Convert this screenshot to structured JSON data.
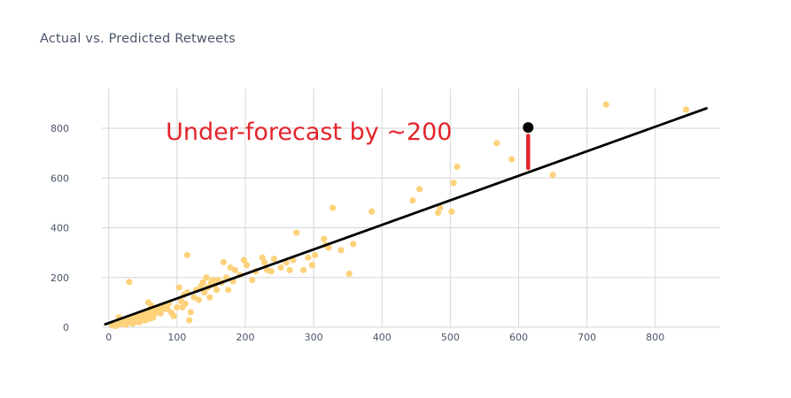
{
  "chart_data": {
    "type": "scatter",
    "title": "Actual vs. Predicted Retweets",
    "xlabel": "",
    "ylabel": "",
    "xlim": [
      -10,
      895
    ],
    "ylim": [
      0,
      960
    ],
    "xticks": [
      0,
      100,
      200,
      300,
      400,
      500,
      600,
      700,
      800
    ],
    "yticks": [
      0,
      200,
      400,
      600,
      800
    ],
    "grid": true,
    "point_color": "#fdd27b",
    "points": [
      [
        5,
        8
      ],
      [
        8,
        12
      ],
      [
        10,
        5
      ],
      [
        12,
        18
      ],
      [
        14,
        10
      ],
      [
        16,
        22
      ],
      [
        18,
        14
      ],
      [
        20,
        28
      ],
      [
        22,
        16
      ],
      [
        24,
        32
      ],
      [
        26,
        20
      ],
      [
        28,
        24
      ],
      [
        30,
        36
      ],
      [
        32,
        18
      ],
      [
        34,
        42
      ],
      [
        36,
        26
      ],
      [
        38,
        30
      ],
      [
        40,
        46
      ],
      [
        42,
        22
      ],
      [
        44,
        52
      ],
      [
        46,
        34
      ],
      [
        48,
        40
      ],
      [
        50,
        56
      ],
      [
        52,
        28
      ],
      [
        54,
        62
      ],
      [
        56,
        44
      ],
      [
        58,
        48
      ],
      [
        60,
        70
      ],
      [
        62,
        36
      ],
      [
        64,
        58
      ],
      [
        66,
        52
      ],
      [
        68,
        74
      ],
      [
        70,
        60
      ],
      [
        72,
        66
      ],
      [
        74,
        80
      ],
      [
        76,
        56
      ],
      [
        78,
        70
      ],
      [
        80,
        86
      ],
      [
        15,
        40
      ],
      [
        25,
        10
      ],
      [
        35,
        15
      ],
      [
        45,
        20
      ],
      [
        55,
        30
      ],
      [
        65,
        40
      ],
      [
        30,
        182
      ],
      [
        58,
        100
      ],
      [
        62,
        88
      ],
      [
        86,
        72
      ],
      [
        88,
        95
      ],
      [
        92,
        58
      ],
      [
        95,
        45
      ],
      [
        100,
        80
      ],
      [
        103,
        160
      ],
      [
        106,
        105
      ],
      [
        108,
        80
      ],
      [
        110,
        130
      ],
      [
        112,
        95
      ],
      [
        115,
        140
      ],
      [
        118,
        28
      ],
      [
        120,
        60
      ],
      [
        115,
        290
      ],
      [
        125,
        120
      ],
      [
        128,
        150
      ],
      [
        132,
        110
      ],
      [
        135,
        165
      ],
      [
        138,
        180
      ],
      [
        140,
        140
      ],
      [
        143,
        200
      ],
      [
        145,
        160
      ],
      [
        148,
        120
      ],
      [
        150,
        180
      ],
      [
        152,
        190
      ],
      [
        155,
        170
      ],
      [
        158,
        150
      ],
      [
        160,
        190
      ],
      [
        165,
        180
      ],
      [
        168,
        262
      ],
      [
        172,
        200
      ],
      [
        175,
        150
      ],
      [
        178,
        240
      ],
      [
        182,
        185
      ],
      [
        185,
        230
      ],
      [
        192,
        210
      ],
      [
        198,
        270
      ],
      [
        202,
        250
      ],
      [
        210,
        190
      ],
      [
        215,
        225
      ],
      [
        225,
        280
      ],
      [
        228,
        260
      ],
      [
        232,
        230
      ],
      [
        238,
        225
      ],
      [
        242,
        275
      ],
      [
        252,
        240
      ],
      [
        260,
        260
      ],
      [
        265,
        230
      ],
      [
        270,
        270
      ],
      [
        275,
        380
      ],
      [
        285,
        230
      ],
      [
        292,
        280
      ],
      [
        298,
        250
      ],
      [
        302,
        290
      ],
      [
        315,
        355
      ],
      [
        318,
        330
      ],
      [
        322,
        320
      ],
      [
        328,
        480
      ],
      [
        340,
        310
      ],
      [
        352,
        215
      ],
      [
        358,
        335
      ],
      [
        385,
        465
      ],
      [
        445,
        510
      ],
      [
        455,
        555
      ],
      [
        482,
        460
      ],
      [
        485,
        480
      ],
      [
        502,
        465
      ],
      [
        505,
        580
      ],
      [
        510,
        645
      ],
      [
        568,
        740
      ],
      [
        590,
        675
      ],
      [
        650,
        612
      ],
      [
        728,
        895
      ],
      [
        845,
        875
      ]
    ],
    "fit_line": [
      [
        -5,
        12
      ],
      [
        875,
        880
      ]
    ],
    "highlight_point": [
      614,
      803
    ],
    "error_bar": [
      [
        614,
        770
      ],
      [
        614,
        640
      ]
    ],
    "annotation": {
      "text": "Under-forecast by ~200",
      "x": 300,
      "y": 790
    }
  }
}
